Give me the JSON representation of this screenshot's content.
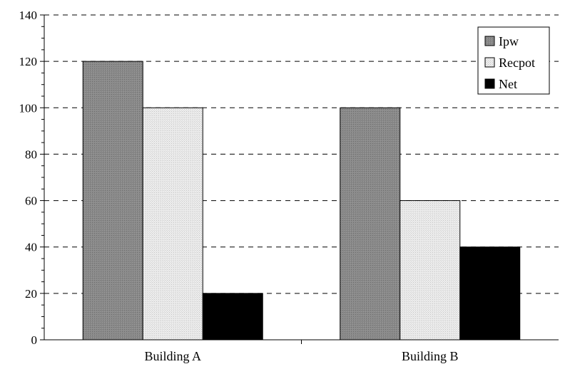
{
  "chart_data": {
    "type": "bar",
    "categories": [
      "Building A",
      "Building B"
    ],
    "series": [
      {
        "name": "Ipw",
        "values": [
          120,
          100
        ],
        "color": "#808080",
        "pattern": "dense-dots"
      },
      {
        "name": "Recpot",
        "values": [
          100,
          60
        ],
        "color": "#e6e6e6",
        "pattern": "light-dots"
      },
      {
        "name": "Net",
        "values": [
          20,
          40
        ],
        "color": "#000000",
        "pattern": "solid"
      }
    ],
    "y_ticks": [
      0,
      20,
      40,
      60,
      80,
      100,
      120,
      140
    ],
    "ylim": [
      0,
      140
    ],
    "grid": "dashed horizontal",
    "legend_position": "top-right",
    "title": "",
    "xlabel": "",
    "ylabel": ""
  }
}
